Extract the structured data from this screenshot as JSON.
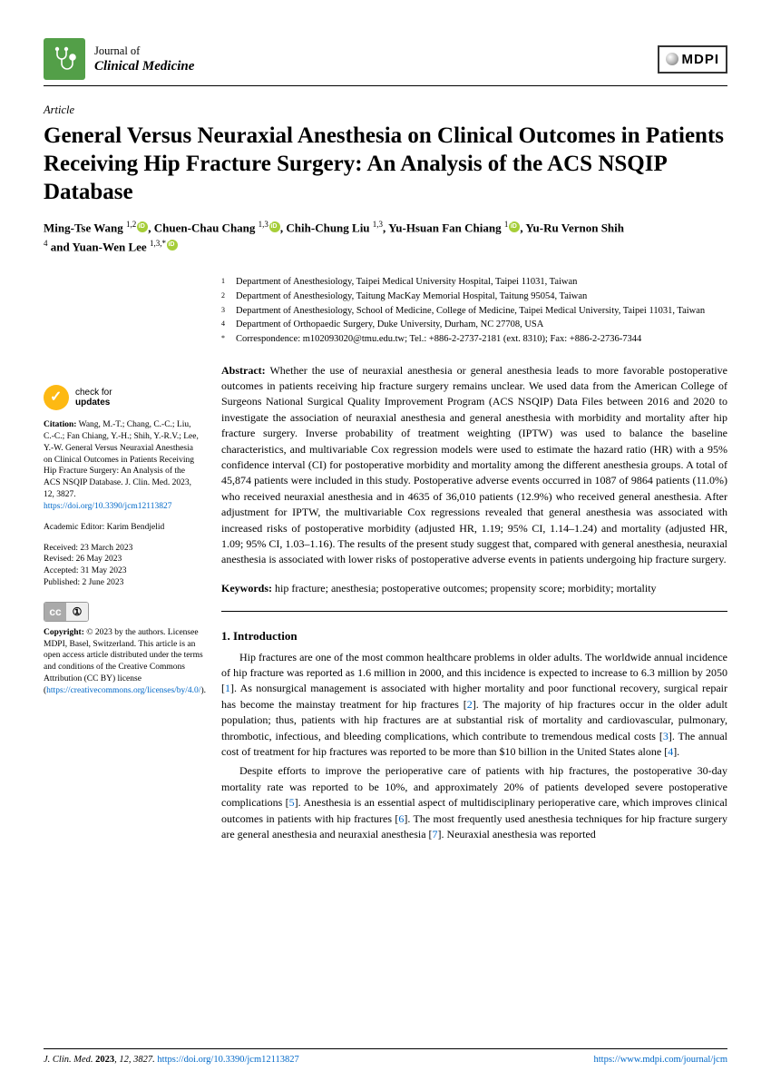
{
  "journal": {
    "line1": "Journal of",
    "line2": "Clinical Medicine",
    "publisher": "MDPI"
  },
  "article": {
    "type": "Article",
    "title": "General Versus Neuraxial Anesthesia on Clinical Outcomes in Patients Receiving Hip Fracture Surgery: An Analysis of the ACS NSQIP Database"
  },
  "authors_html_parts": {
    "a1": "Ming-Tse Wang ",
    "s1": "1,2",
    "a2": ", Chuen-Chau Chang ",
    "s2": "1,3",
    "a3": ", Chih-Chung Liu ",
    "s3": "1,3",
    "a4": ", Yu-Hsuan Fan Chiang ",
    "s4": "1",
    "a5": ", Yu-Ru Vernon Shih ",
    "s5": "4",
    "a6": " and Yuan-Wen Lee ",
    "s6": "1,3,"
  },
  "affiliations": [
    {
      "n": "1",
      "t": "Department of Anesthesiology, Taipei Medical University Hospital, Taipei 11031, Taiwan"
    },
    {
      "n": "2",
      "t": "Department of Anesthesiology, Taitung MacKay Memorial Hospital, Taitung 95054, Taiwan"
    },
    {
      "n": "3",
      "t": "Department of Anesthesiology, School of Medicine, College of Medicine, Taipei Medical University, Taipei 11031, Taiwan"
    },
    {
      "n": "4",
      "t": "Department of Orthopaedic Surgery, Duke University, Durham, NC 27708, USA"
    },
    {
      "n": "*",
      "t": "Correspondence: m102093020@tmu.edu.tw; Tel.: +886-2-2737-2181 (ext. 8310); Fax: +886-2-2736-7344"
    }
  ],
  "abstract": {
    "label": "Abstract:",
    "text": " Whether the use of neuraxial anesthesia or general anesthesia leads to more favorable postoperative outcomes in patients receiving hip fracture surgery remains unclear. We used data from the American College of Surgeons National Surgical Quality Improvement Program (ACS NSQIP) Data Files between 2016 and 2020 to investigate the association of neuraxial anesthesia and general anesthesia with morbidity and mortality after hip fracture surgery. Inverse probability of treatment weighting (IPTW) was used to balance the baseline characteristics, and multivariable Cox regression models were used to estimate the hazard ratio (HR) with a 95% confidence interval (CI) for postoperative morbidity and mortality among the different anesthesia groups. A total of 45,874 patients were included in this study. Postoperative adverse events occurred in 1087 of 9864 patients (11.0%) who received neuraxial anesthesia and in 4635 of 36,010 patients (12.9%) who received general anesthesia. After adjustment for IPTW, the multivariable Cox regressions revealed that general anesthesia was associated with increased risks of postoperative morbidity (adjusted HR, 1.19; 95% CI, 1.14–1.24) and mortality (adjusted HR, 1.09; 95% CI, 1.03–1.16). The results of the present study suggest that, compared with general anesthesia, neuraxial anesthesia is associated with lower risks of postoperative adverse events in patients undergoing hip fracture surgery."
  },
  "keywords": {
    "label": "Keywords:",
    "text": " hip fracture; anesthesia; postoperative outcomes; propensity score; morbidity; mortality"
  },
  "section1": {
    "heading": "1. Introduction",
    "p1a": "Hip fractures are one of the most common healthcare problems in older adults. The worldwide annual incidence of hip fracture was reported as 1.6 million in 2000, and this incidence is expected to increase to 6.3 million by 2050 [",
    "c1": "1",
    "p1b": "]. As nonsurgical management is associated with higher mortality and poor functional recovery, surgical repair has become the mainstay treatment for hip fractures [",
    "c2": "2",
    "p1c": "]. The majority of hip fractures occur in the older adult population; thus, patients with hip fractures are at substantial risk of mortality and cardiovascular, pulmonary, thrombotic, infectious, and bleeding complications, which contribute to tremendous medical costs [",
    "c3": "3",
    "p1d": "]. The annual cost of treatment for hip fractures was reported to be more than $10 billion in the United States alone [",
    "c4": "4",
    "p1e": "].",
    "p2a": "Despite efforts to improve the perioperative care of patients with hip fractures, the postoperative 30-day mortality rate was reported to be 10%, and approximately 20% of patients developed severe postoperative complications [",
    "c5": "5",
    "p2b": "]. Anesthesia is an essential aspect of multidisciplinary perioperative care, which improves clinical outcomes in patients with hip fractures [",
    "c6": "6",
    "p2c": "]. The most frequently used anesthesia techniques for hip fracture surgery are general anesthesia and neuraxial anesthesia [",
    "c7": "7",
    "p2d": "]. Neuraxial anesthesia was reported"
  },
  "sidebar": {
    "check": {
      "l1": "check for",
      "l2": "updates"
    },
    "citation_label": "Citation:",
    "citation": " Wang, M.-T.; Chang, C.-C.; Liu, C.-C.; Fan Chiang, Y.-H.; Shih, Y.-R.V.; Lee, Y.-W. General Versus Neuraxial Anesthesia on Clinical Outcomes in Patients Receiving Hip Fracture Surgery: An Analysis of the ACS NSQIP Database. J. Clin. Med. 2023, 12, 3827. ",
    "citation_doi": "https://doi.org/10.3390/jcm12113827",
    "editor": "Academic Editor: Karim Bendjelid",
    "received": "Received: 23 March 2023",
    "revised": "Revised: 26 May 2023",
    "accepted": "Accepted: 31 May 2023",
    "published": "Published: 2 June 2023",
    "copyright_label": "Copyright:",
    "copyright": " © 2023 by the authors. Licensee MDPI, Basel, Switzerland. This article is an open access article distributed under the terms and conditions of the Creative Commons Attribution (CC BY) license (",
    "cc_link": "https://creativecommons.org/licenses/by/4.0/",
    "copyright_end": ")."
  },
  "footer": {
    "left_a": "J. Clin. Med. ",
    "left_b": "2023",
    "left_c": ", 12, 3827. ",
    "left_link": "https://doi.org/10.3390/jcm12113827",
    "right_link": "https://www.mdpi.com/journal/jcm"
  },
  "colors": {
    "icon_green": "#539f48",
    "orcid_green": "#a6ce39",
    "link_blue": "#0068c8",
    "check_yellow": "#fdb913"
  }
}
